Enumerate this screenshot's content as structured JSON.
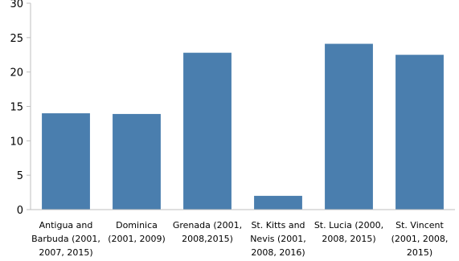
{
  "chart_data": {
    "type": "bar",
    "title": "",
    "xlabel": "",
    "ylabel": "",
    "categories": [
      [
        "Antigua and",
        "Barbuda (2001,",
        "2007, 2015)"
      ],
      [
        "Dominica",
        "(2001, 2009)"
      ],
      [
        "Grenada (2001,",
        "2008,2015)"
      ],
      [
        "St. Kitts and",
        "Nevis (2001,",
        "2008, 2016)"
      ],
      [
        "St. Lucia (2000,",
        "2008, 2015)"
      ],
      [
        "St. Vincent",
        "(2001, 2008,",
        "2015)"
      ]
    ],
    "values": [
      14.0,
      13.9,
      22.8,
      2.0,
      24.1,
      22.5
    ],
    "ylim": [
      0,
      30
    ],
    "yticks": [
      0,
      5,
      10,
      15,
      20,
      25,
      30
    ],
    "grid": false,
    "bar_color": "#4a7eae",
    "axis_color": "#bfbfbf"
  }
}
